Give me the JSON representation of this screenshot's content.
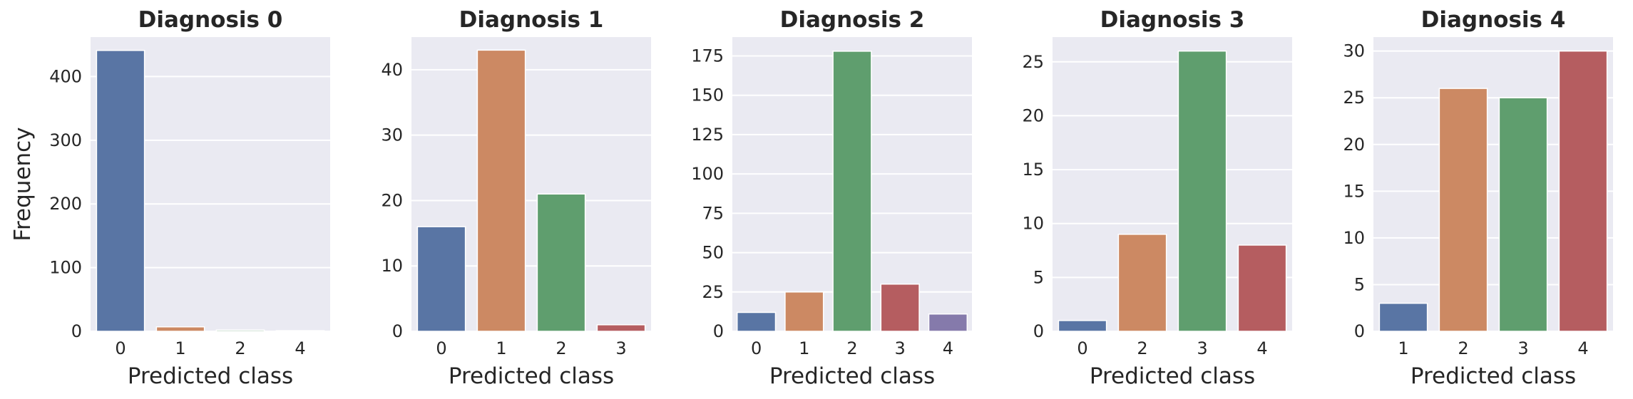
{
  "chart_data": [
    {
      "type": "bar",
      "title": "Diagnosis 0",
      "xlabel": "Predicted class",
      "ylabel": "Frequency",
      "categories": [
        "0",
        "1",
        "2",
        "4"
      ],
      "values": [
        441,
        7,
        2,
        1
      ],
      "colors": [
        "#5975a4",
        "#cc8963",
        "#5f9e6e",
        "#b55d60"
      ],
      "ylim": [
        0,
        462
      ],
      "yticks": [
        0,
        100,
        200,
        300,
        400
      ],
      "grid": true
    },
    {
      "type": "bar",
      "title": "Diagnosis 1",
      "xlabel": "Predicted class",
      "ylabel": "",
      "categories": [
        "0",
        "1",
        "2",
        "3"
      ],
      "values": [
        16,
        43,
        21,
        1
      ],
      "colors": [
        "#5975a4",
        "#cc8963",
        "#5f9e6e",
        "#b55d60"
      ],
      "ylim": [
        0,
        45
      ],
      "yticks": [
        0,
        10,
        20,
        30,
        40
      ],
      "grid": true
    },
    {
      "type": "bar",
      "title": "Diagnosis 2",
      "xlabel": "Predicted class",
      "ylabel": "",
      "categories": [
        "0",
        "1",
        "2",
        "3",
        "4"
      ],
      "values": [
        12,
        25,
        178,
        30,
        11
      ],
      "colors": [
        "#5975a4",
        "#cc8963",
        "#5f9e6e",
        "#b55d60",
        "#857aab"
      ],
      "ylim": [
        0,
        187
      ],
      "yticks": [
        0,
        25,
        50,
        75,
        100,
        125,
        150,
        175
      ],
      "grid": true
    },
    {
      "type": "bar",
      "title": "Diagnosis 3",
      "xlabel": "Predicted class",
      "ylabel": "",
      "categories": [
        "0",
        "2",
        "3",
        "4"
      ],
      "values": [
        1,
        9,
        26,
        8
      ],
      "colors": [
        "#5975a4",
        "#cc8963",
        "#5f9e6e",
        "#b55d60"
      ],
      "ylim": [
        0,
        27.3
      ],
      "yticks": [
        0,
        5,
        10,
        15,
        20,
        25
      ],
      "grid": true
    },
    {
      "type": "bar",
      "title": "Diagnosis 4",
      "xlabel": "Predicted class",
      "ylabel": "",
      "categories": [
        "1",
        "2",
        "3",
        "4"
      ],
      "values": [
        3,
        26,
        25,
        30
      ],
      "colors": [
        "#5975a4",
        "#cc8963",
        "#5f9e6e",
        "#b55d60"
      ],
      "ylim": [
        0,
        31.5
      ],
      "yticks": [
        0,
        5,
        10,
        15,
        20,
        25,
        30
      ],
      "grid": true
    }
  ]
}
